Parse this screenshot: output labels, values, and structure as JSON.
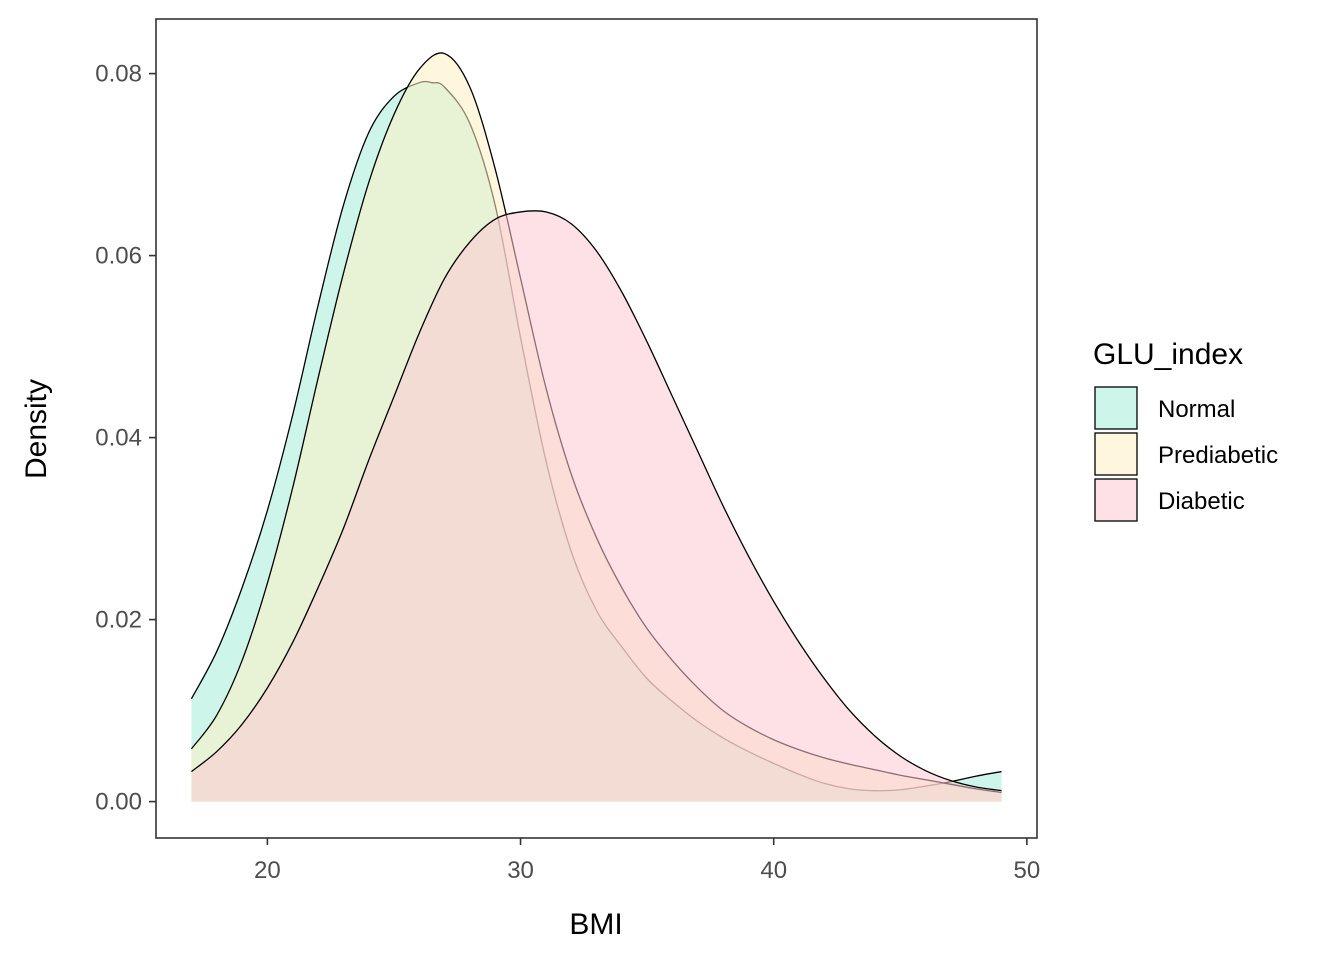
{
  "chart_data": {
    "type": "area",
    "xlabel": "BMI",
    "ylabel": "Density",
    "xlim": [
      15.6,
      50.4
    ],
    "ylim": [
      -0.004,
      0.086
    ],
    "xticks": [
      20,
      30,
      40,
      50
    ],
    "xtick_labels": [
      "20",
      "30",
      "40",
      "50"
    ],
    "yticks": [
      0.0,
      0.02,
      0.04,
      0.06,
      0.08
    ],
    "ytick_labels": [
      "0.00",
      "0.02",
      "0.04",
      "0.06",
      "0.08"
    ],
    "grid": false,
    "legend": {
      "title": "GLU_index",
      "position": "right"
    },
    "series": [
      {
        "name": "Normal",
        "color": "#a6ecd8",
        "x": [
          17,
          18,
          19,
          20,
          21,
          22,
          23,
          24,
          25,
          26,
          26.5,
          27,
          28,
          29,
          30,
          31,
          32,
          33,
          34,
          35,
          36,
          37,
          38,
          39,
          40,
          41,
          42,
          43,
          44,
          45,
          46,
          47,
          48,
          49
        ],
        "y": [
          0.0113,
          0.0165,
          0.0235,
          0.032,
          0.0425,
          0.0545,
          0.0655,
          0.0735,
          0.0775,
          0.079,
          0.079,
          0.0785,
          0.0745,
          0.0655,
          0.051,
          0.0375,
          0.0275,
          0.021,
          0.017,
          0.0135,
          0.011,
          0.0088,
          0.007,
          0.0055,
          0.0042,
          0.003,
          0.002,
          0.0014,
          0.0012,
          0.0013,
          0.0017,
          0.0022,
          0.0028,
          0.0033
        ]
      },
      {
        "name": "Prediabetic",
        "color": "#fdf0c2",
        "x": [
          17,
          18,
          19,
          20,
          21,
          22,
          23,
          24,
          25,
          26,
          27,
          28,
          29,
          30,
          31,
          32,
          33,
          34,
          35,
          36,
          37,
          38,
          39,
          40,
          41,
          42,
          43,
          44,
          45,
          46,
          47,
          48,
          49
        ],
        "y": [
          0.0058,
          0.0095,
          0.0155,
          0.024,
          0.0345,
          0.0465,
          0.058,
          0.068,
          0.0755,
          0.0805,
          0.0822,
          0.0785,
          0.0695,
          0.0575,
          0.0455,
          0.036,
          0.029,
          0.0235,
          0.019,
          0.0155,
          0.0125,
          0.01,
          0.0082,
          0.0068,
          0.0057,
          0.0048,
          0.0041,
          0.0035,
          0.0029,
          0.0024,
          0.0019,
          0.0014,
          0.001
        ]
      },
      {
        "name": "Diabetic",
        "color": "#fcc8d2",
        "x": [
          17,
          18,
          19,
          20,
          21,
          22,
          23,
          24,
          25,
          26,
          27,
          28,
          29,
          30,
          31,
          32,
          33,
          34,
          35,
          36,
          37,
          38,
          39,
          40,
          41,
          42,
          43,
          44,
          45,
          46,
          47,
          48,
          49
        ],
        "y": [
          0.0033,
          0.0055,
          0.0085,
          0.0125,
          0.0175,
          0.0235,
          0.03,
          0.0375,
          0.0445,
          0.0515,
          0.0575,
          0.0615,
          0.064,
          0.0648,
          0.0648,
          0.0635,
          0.0605,
          0.056,
          0.0505,
          0.0445,
          0.0385,
          0.0325,
          0.027,
          0.022,
          0.0175,
          0.0135,
          0.01,
          0.0072,
          0.005,
          0.0034,
          0.0023,
          0.0016,
          0.0012
        ]
      }
    ]
  }
}
